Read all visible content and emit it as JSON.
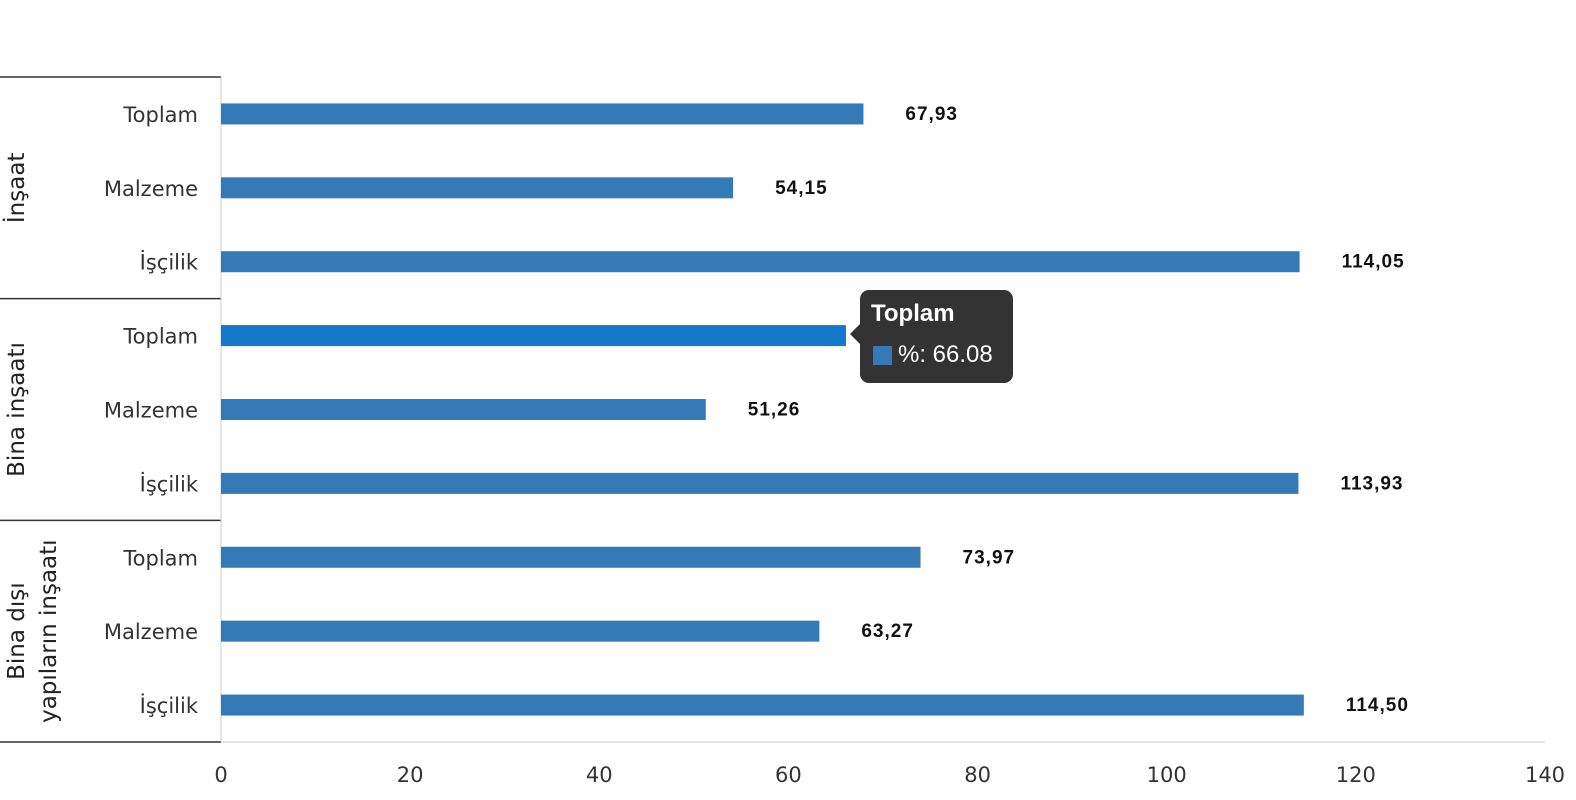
{
  "chart_data": {
    "type": "bar",
    "orientation": "horizontal",
    "xlim": [
      0,
      140
    ],
    "x_ticks": [
      "0",
      "20",
      "40",
      "60",
      "80",
      "100",
      "120",
      "140"
    ],
    "groups": [
      {
        "label": "İnşaat",
        "categories": [
          "Toplam",
          "Malzeme",
          "İşçilik"
        ],
        "values": [
          67.93,
          54.15,
          114.05
        ],
        "value_labels": [
          "67,93",
          "54,15",
          "114,05"
        ]
      },
      {
        "label": "Bina inşaatı",
        "categories": [
          "Toplam",
          "Malzeme",
          "İşçilik"
        ],
        "values": [
          66.08,
          51.26,
          113.93
        ],
        "value_labels": [
          "66,08",
          "51,26",
          "113,93"
        ]
      },
      {
        "label": "Bina dışı yapıların inşaatı",
        "label_lines": [
          "Bina dışı",
          "yapıların inşaatı"
        ],
        "categories": [
          "Toplam",
          "Malzeme",
          "İşçilik"
        ],
        "values": [
          73.97,
          63.27,
          114.5
        ],
        "value_labels": [
          "73,97",
          "63,27",
          "114,50"
        ]
      }
    ],
    "bar_color": "#337ab7",
    "highlight_color": "#1478c8",
    "highlighted_bar": {
      "group": 1,
      "index": 0
    },
    "legend": "none",
    "grid": false
  },
  "tooltip": {
    "title": "Toplam",
    "row": "%: 66.08",
    "color": "#337ab7"
  }
}
